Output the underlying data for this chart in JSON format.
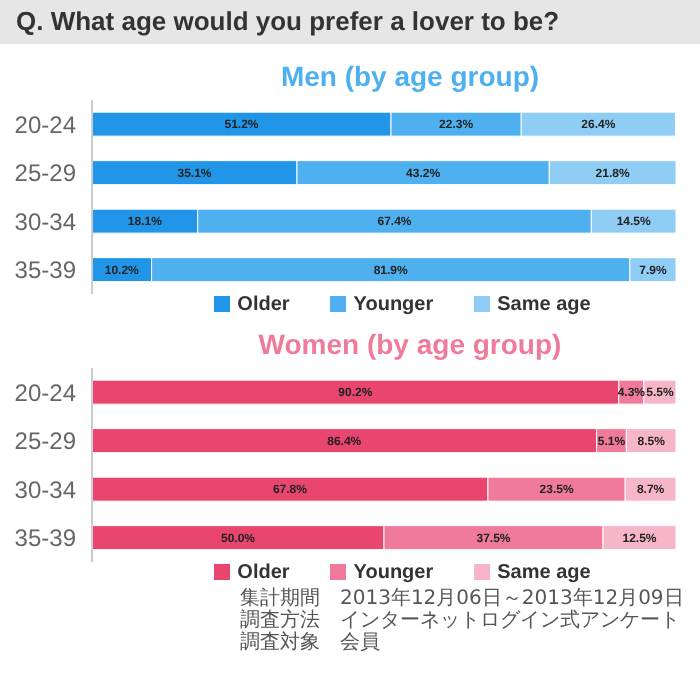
{
  "chart_data": [
    {
      "type": "bar",
      "title": "Q. What age would you prefer a lover to be?",
      "subtitle": "Men (by age group)",
      "orientation": "horizontal",
      "stacked": true,
      "legend": "bottom",
      "categories": [
        "20-24",
        "25-29",
        "30-34",
        "35-39"
      ],
      "series": [
        {
          "name": "Older",
          "color": "#2196e8",
          "values": [
            51.2,
            35.1,
            18.1,
            10.2
          ],
          "value_labels": [
            "51.2%",
            "35.1%",
            "18.1%",
            "10.2%"
          ]
        },
        {
          "name": "Younger",
          "color": "#4fb0ef",
          "values": [
            22.3,
            43.2,
            67.4,
            81.9
          ],
          "value_labels": [
            "22.3%",
            "43.2%",
            "67.4%",
            "81.9%"
          ]
        },
        {
          "name": "Same age",
          "color": "#8fcdf5",
          "values": [
            26.4,
            21.8,
            14.5,
            7.9
          ],
          "value_labels": [
            "26.4%",
            "21.8%",
            "14.5%",
            "7.9%"
          ]
        }
      ]
    },
    {
      "type": "bar",
      "subtitle": "Women (by age group)",
      "orientation": "horizontal",
      "stacked": true,
      "legend": "bottom",
      "categories": [
        "20-24",
        "25-29",
        "30-34",
        "35-39"
      ],
      "series": [
        {
          "name": "Older",
          "color": "#e8456f",
          "values": [
            90.2,
            86.4,
            67.8,
            50.0
          ],
          "value_labels": [
            "90.2%",
            "86.4%",
            "67.8%",
            "50.0%"
          ]
        },
        {
          "name": "Younger",
          "color": "#f07a99",
          "values": [
            4.3,
            5.1,
            23.5,
            37.5
          ],
          "value_labels": [
            "4.3%",
            "5.1%",
            "23.5%",
            "37.5%"
          ]
        },
        {
          "name": "Same age",
          "color": "#f6b5c8",
          "values": [
            5.5,
            8.5,
            8.7,
            12.5
          ],
          "value_labels": [
            "5.5%",
            "8.5%",
            "8.7%",
            "12.5%"
          ]
        }
      ],
      "annotations": [
        "集計期間　2013年12月06日～2013年12月09日",
        "調査方法　インターネットログイン式アンケート",
        "調査対象　会員"
      ]
    }
  ]
}
